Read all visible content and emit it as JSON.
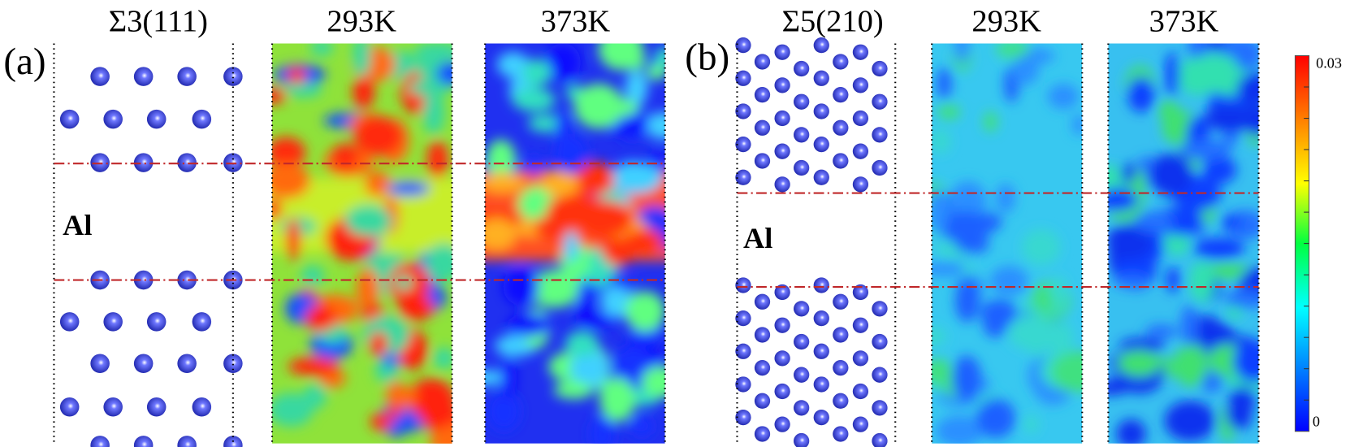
{
  "panels": [
    {
      "label": "(a)",
      "columns": [
        "Σ3(111)",
        "293K",
        "373K"
      ],
      "element": "Al"
    },
    {
      "label": "(b)",
      "columns": [
        "Σ5(210)",
        "293K",
        "373K"
      ],
      "element": "Al"
    }
  ],
  "colorbar": {
    "max_label": "0.03",
    "min_label": "0"
  }
}
